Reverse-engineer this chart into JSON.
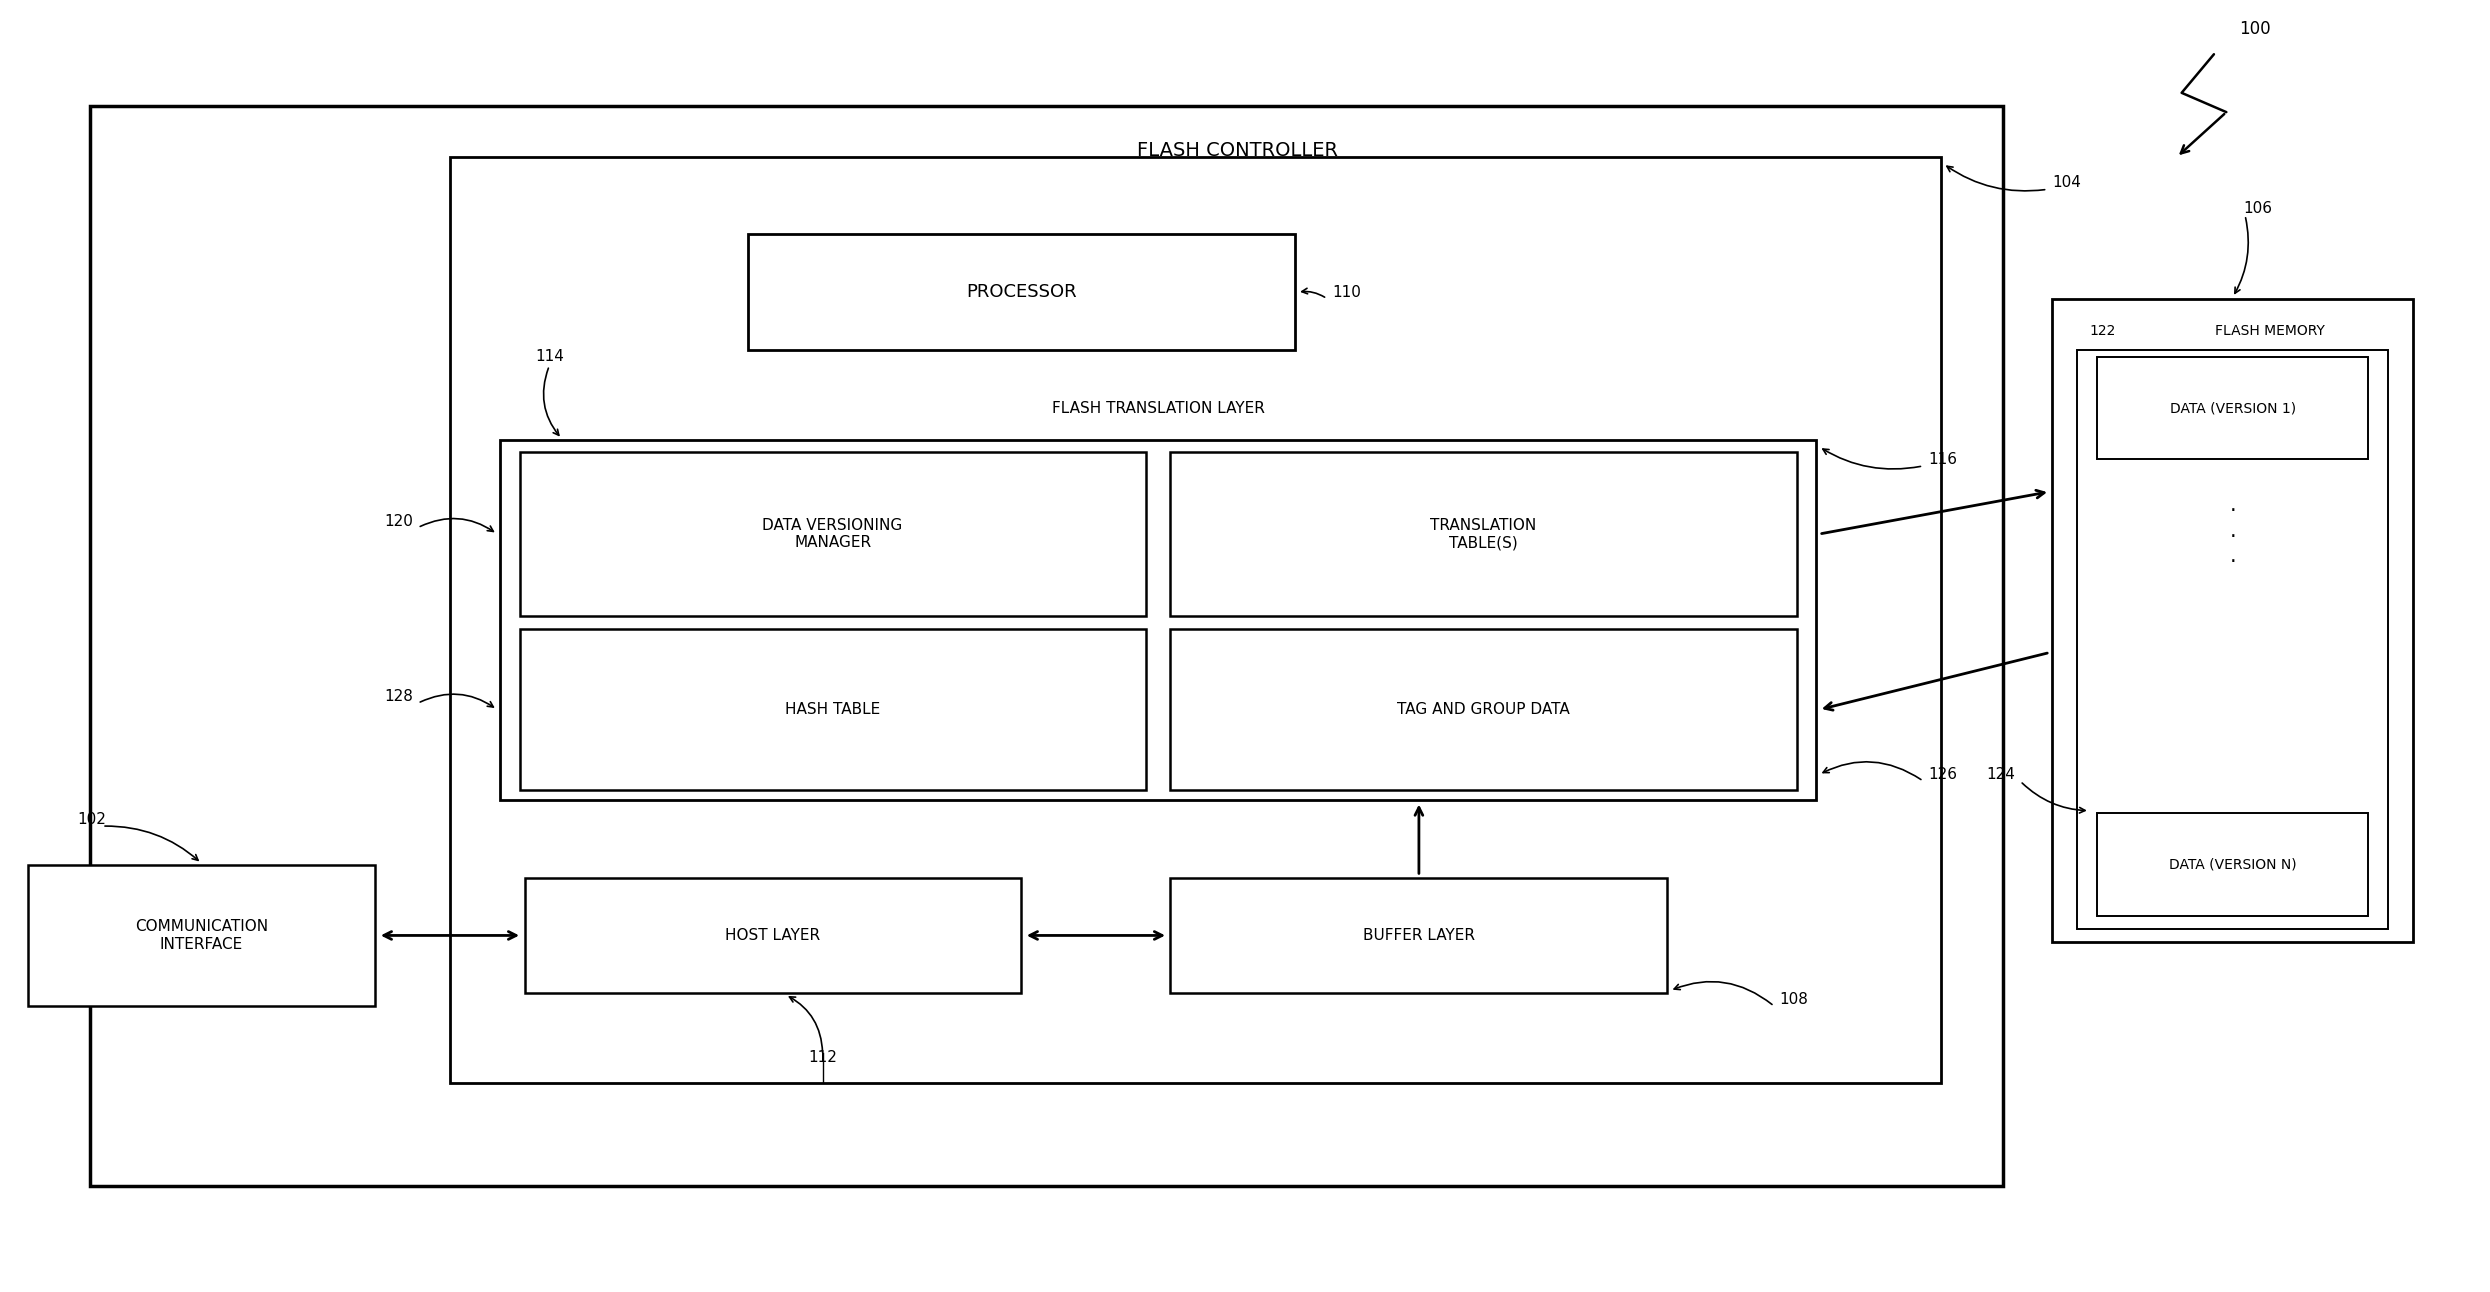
{
  "bg_color": "#ffffff",
  "line_color": "#000000",
  "fig_width": 24.9,
  "fig_height": 12.92,
  "title": "FLASH CONTROLLER",
  "ref_100": "100",
  "ref_102": "102",
  "ref_104": "104",
  "ref_106": "106",
  "ref_108": "108",
  "ref_110": "110",
  "ref_112": "112",
  "ref_114": "114",
  "ref_116": "116",
  "ref_120": "120",
  "ref_122": "122",
  "ref_124": "124",
  "ref_126": "126",
  "ref_128": "128",
  "label_processor": "PROCESSOR",
  "label_ftl": "FLASH TRANSLATION LAYER",
  "label_dvm": "DATA VERSIONING\nMANAGER",
  "label_tt": "TRANSLATION\nTABLE(S)",
  "label_ht": "HASH TABLE",
  "label_tagdata": "TAG AND GROUP DATA",
  "label_hostlayer": "HOST LAYER",
  "label_bufferlayer": "BUFFER LAYER",
  "label_commiface": "COMMUNICATION\nINTERFACE",
  "label_flashmem": "FLASH MEMORY",
  "label_data_v1": "DATA (VERSION 1)",
  "label_data_vn": "DATA (VERSION N)",
  "fs_main": 13,
  "fs_small": 11,
  "fs_ref": 11,
  "fs_title": 14
}
